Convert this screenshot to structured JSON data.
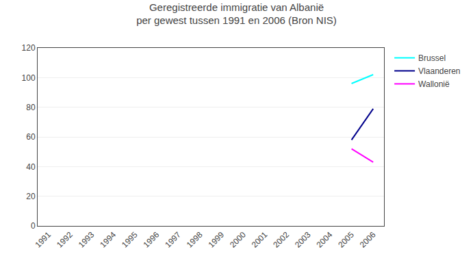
{
  "chart_data": {
    "type": "line",
    "title": "Geregistreerde immigratie van Albanië\nper gewest tussen 1991 en 2006 (Bron NIS)",
    "x": [
      1991,
      1992,
      1993,
      1994,
      1995,
      1996,
      1997,
      1998,
      1999,
      2000,
      2001,
      2002,
      2003,
      2004,
      2005,
      2006
    ],
    "series": [
      {
        "name": "Brussel",
        "color": "#00FFFF",
        "values": [
          null,
          null,
          null,
          null,
          null,
          null,
          null,
          null,
          null,
          null,
          null,
          null,
          null,
          null,
          96,
          102
        ]
      },
      {
        "name": "Vlaanderen",
        "color": "#00008B",
        "values": [
          null,
          null,
          null,
          null,
          null,
          null,
          null,
          null,
          null,
          null,
          null,
          null,
          null,
          null,
          58,
          79
        ]
      },
      {
        "name": "Wallonië",
        "color": "#FF00FF",
        "values": [
          null,
          null,
          null,
          null,
          null,
          null,
          null,
          null,
          null,
          null,
          null,
          null,
          null,
          null,
          52,
          43
        ]
      }
    ],
    "xlim": [
      1990.5,
      2006.5
    ],
    "xticks": [
      1991,
      1992,
      1993,
      1994,
      1995,
      1996,
      1997,
      1998,
      1999,
      2000,
      2001,
      2002,
      2003,
      2004,
      2005,
      2006
    ],
    "ylim": [
      0,
      120
    ],
    "yticks": [
      0,
      20,
      40,
      60,
      80,
      100,
      120
    ],
    "grid": "y",
    "legend": "right"
  }
}
